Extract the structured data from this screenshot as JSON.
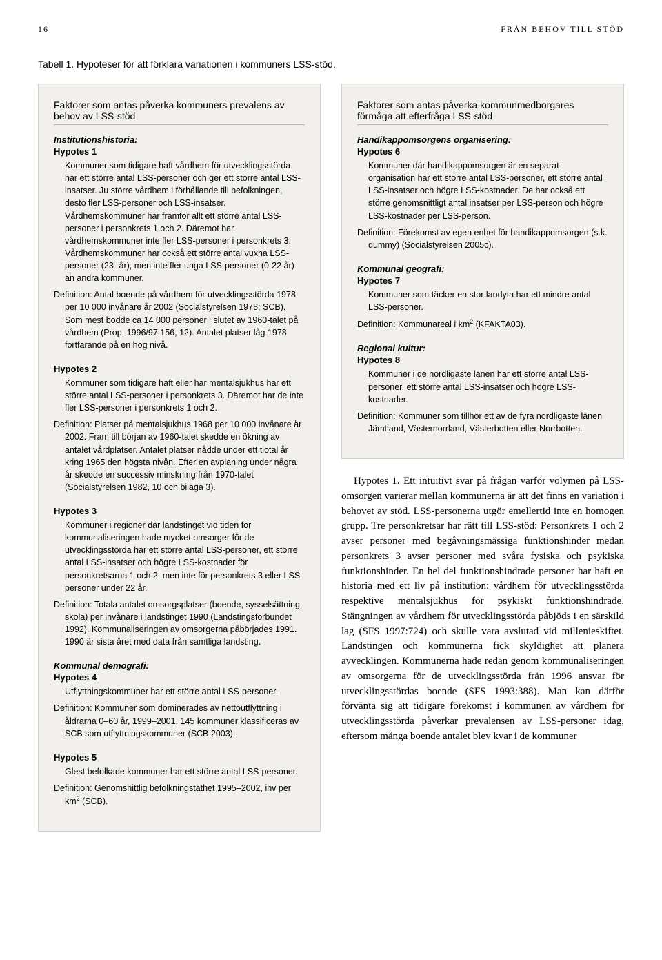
{
  "header": {
    "page_number": "16",
    "running_title": "FRÅN BEHOV TILL STÖD"
  },
  "table_title": "Tabell 1. Hypoteser för att förklara variationen i kommuners LSS-stöd.",
  "left": {
    "factor_heading": "Faktorer som antas påverka kommuners prevalens av behov av LSS-stöd",
    "sec1_title": "Institutionshistoria:",
    "h1_label": "Hypotes 1",
    "h1_body": "Kommuner som tidigare haft vårdhem för utvecklingsstörda har ett större antal LSS-personer och ger ett större antal LSS-insatser. Ju större vårdhem i förhållande till befolkningen, desto fler LSS-personer och LSS-insatser. Vårdhemskommuner har framför allt ett större antal LSS-personer i personkrets 1 och 2. Däremot har vårdhemskommuner inte fler LSS-personer i personkrets 3. Vårdhemskommuner har också ett större antal vuxna LSS-personer (23- år), men inte fler unga LSS-personer (0-22 år) än andra kommuner.",
    "h1_def": "Definition: Antal boende på vårdhem för utvecklingsstörda 1978 per 10 000 invånare år 2002 (Socialstyrelsen 1978; SCB). Som mest bodde ca 14 000 personer i slutet av 1960-talet på vårdhem (Prop. 1996/97:156, 12). Antalet platser låg 1978 fortfarande på en hög nivå.",
    "h2_label": "Hypotes 2",
    "h2_body": "Kommuner som tidigare haft eller har mentalsjukhus har ett större antal LSS-personer i personkrets 3. Däremot har de inte fler LSS-personer i personkrets 1 och 2.",
    "h2_def": "Definition: Platser på mentalsjukhus 1968 per 10 000 invånare år 2002. Fram till början av 1960-talet skedde en ökning av antalet vårdplatser. Antalet platser nådde under ett tiotal år kring 1965 den högsta nivån. Efter en avplaning under några år skedde en successiv minskning från 1970-talet (Socialstyrelsen 1982, 10 och bilaga 3).",
    "h3_label": "Hypotes 3",
    "h3_body": "Kommuner i regioner där landstinget vid tiden för kommunaliseringen hade mycket omsorger för de utvecklingsstörda har ett större antal LSS-personer, ett större antal LSS-insatser och högre LSS-kostnader för personkretsarna 1 och 2, men inte för personkrets 3 eller LSS-personer under 22 år.",
    "h3_def": "Definition: Totala antalet omsorgsplatser (boende, sysselsättning, skola) per invånare i landstinget 1990 (Landstingsförbundet 1992). Kommunaliseringen av omsorgerna påbörjades 1991. 1990 är sista året med data från samtliga landsting.",
    "sec2_title": "Kommunal demografi:",
    "h4_label": "Hypotes 4",
    "h4_body": "Utflyttningskommuner har ett större antal LSS-personer.",
    "h4_def": "Definition: Kommuner som dominerades av nettoutflyttning i åldrarna 0–60 år, 1999–2001. 145 kommuner klassificeras av SCB som utflyttningskommuner (SCB 2003).",
    "h5_label": "Hypotes 5",
    "h5_body": "Glest befolkade kommuner har ett större antal LSS-personer.",
    "h5_def_prefix": "Definition: Genomsnittlig befolkningstäthet 1995–2002, inv per km",
    "h5_def_suffix": " (SCB)."
  },
  "right": {
    "factor_heading": "Faktorer som antas påverka kommunmedborgares förmåga att efterfråga LSS-stöd",
    "sec1_title": "Handikappomsorgens organisering:",
    "h6_label": "Hypotes 6",
    "h6_body": "Kommuner där handikappomsorgen är en separat organisation har ett större antal LSS-personer, ett större antal LSS-insatser och högre LSS-kostnader. De har också ett större genomsnittligt antal insatser per LSS-person och högre LSS-kostnader per LSS-person.",
    "h6_def": "Definition: Förekomst av egen enhet för handikappomsorgen (s.k. dummy) (Socialstyrelsen 2005c).",
    "sec2_title": "Kommunal geografi:",
    "h7_label": "Hypotes 7",
    "h7_body": "Kommuner som täcker en stor landyta har ett mindre antal LSS-personer.",
    "h7_def_prefix": "Definition: Kommunareal i km",
    "h7_def_suffix": " (KFAKTA03).",
    "sec3_title": "Regional kultur:",
    "h8_label": "Hypotes 8",
    "h8_body": "Kommuner i de nordligaste länen har ett större antal LSS-personer, ett större antal LSS-insatser och högre LSS-kostnader.",
    "h8_def": "Definition: Kommuner som tillhör ett av de fyra nordligaste länen Jämtland, Västernorrland, Västerbotten eller Norrbotten."
  },
  "body_para": "Hypotes 1. Ett intuitivt svar på frågan varför volymen på LSS-omsorgen varierar mellan kommunerna är att det finns en variation i behovet av stöd. LSS-personerna utgör emellertid inte en homogen grupp. Tre personkretsar har rätt till LSS-stöd: Personkrets 1 och 2 avser personer med begåvningsmässiga funktionshinder medan personkrets 3 avser personer med svåra fysiska och psykiska funktionshinder. En hel del funktionshindrade personer har haft en historia med ett liv på institution: vårdhem för utvecklingsstörda respektive mentalsjukhus för psykiskt funktionshindrade. Stängningen av vårdhem för utvecklingsstörda påbjöds i en särskild lag (SFS 1997:724) och skulle vara avslutad vid millenieskiftet. Landstingen och kommunerna fick skyldighet att planera avvecklingen. Kommunerna hade redan genom kommunaliseringen av omsorgerna för de utvecklingsstörda från 1996 ansvar för utvecklingsstördas boende (SFS 1993:388). Man kan därför förvänta sig att tidigare förekomst i kommunen av vårdhem för utvecklingsstörda påverkar prevalensen av LSS-personer idag, eftersom många boende antalet blev kvar i de kommuner"
}
